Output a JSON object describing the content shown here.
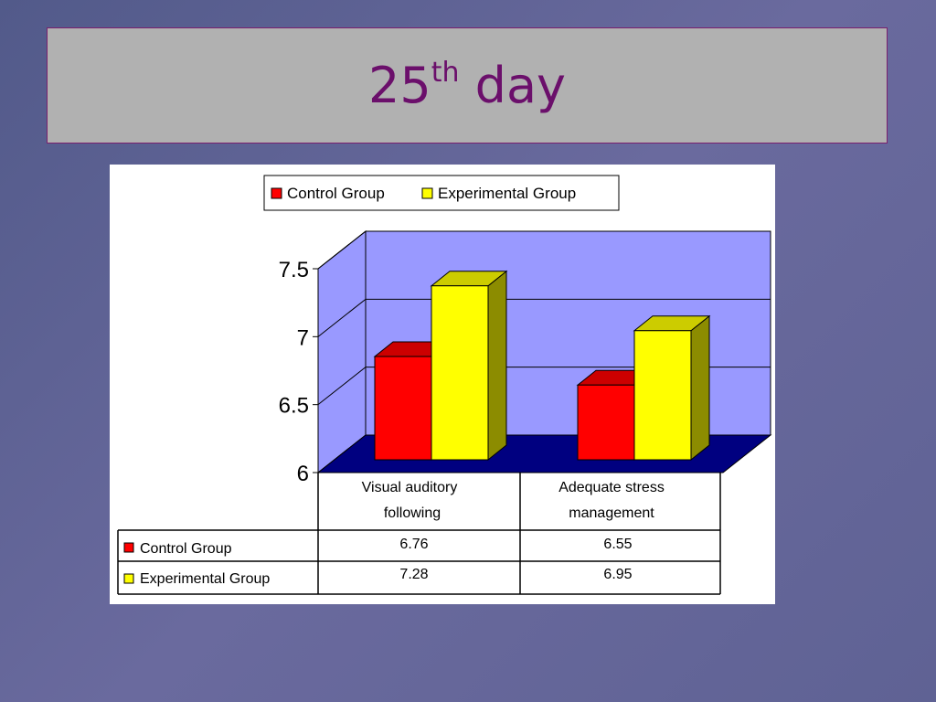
{
  "slide": {
    "title_main": "25",
    "title_sup": "th",
    "title_rest": " day"
  },
  "colors": {
    "control": "#ff0000",
    "experimental": "#ffff00",
    "wall": "#9999ff",
    "floor": "#000080",
    "title_text": "#6b0f6b"
  },
  "chart_data": {
    "type": "bar",
    "categories": [
      "Visual auditory following",
      "Adequate stress management"
    ],
    "category_lines": [
      [
        "Visual auditory",
        "following"
      ],
      [
        "Adequate stress",
        "management"
      ]
    ],
    "series": [
      {
        "name": "Control Group",
        "values": [
          6.76,
          6.55
        ],
        "labels": [
          "6.76",
          "6.55"
        ]
      },
      {
        "name": "Experimental Group",
        "values": [
          7.28,
          6.95
        ],
        "labels": [
          "7.28",
          "6.95"
        ]
      }
    ],
    "ylim": [
      6,
      7.5
    ],
    "yticks": [
      "6",
      "6.5",
      "7",
      "7.5"
    ],
    "legend_position": "top",
    "grid": true,
    "style": "3d-column-with-data-table"
  }
}
